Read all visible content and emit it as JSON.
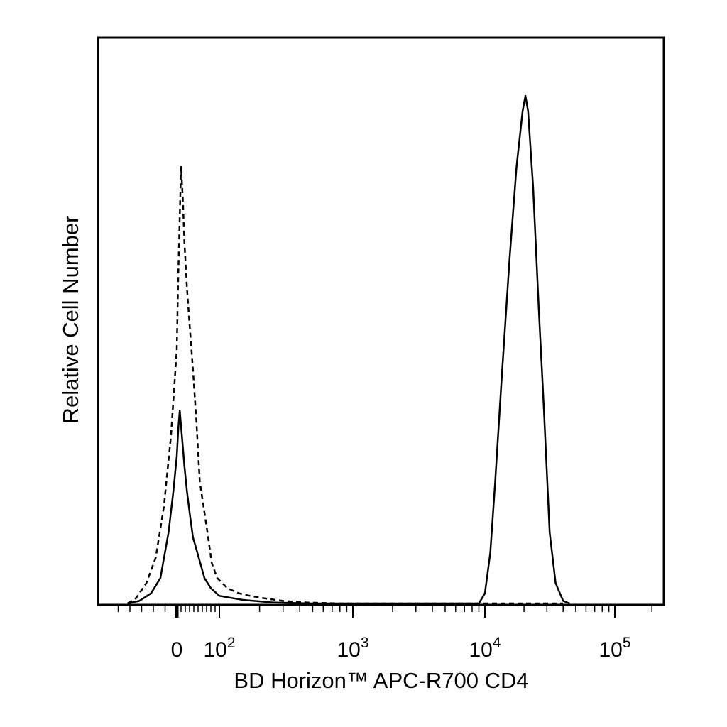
{
  "chart_data": {
    "type": "line",
    "title": "",
    "xlabel": "BD Horizon™ APC-R700 CD4",
    "ylabel": "Relative Cell Number",
    "x_scale": "biexponential",
    "xlim": [
      -60,
      250000
    ],
    "ylim": [
      0,
      1
    ],
    "grid": false,
    "legend": "none",
    "x_tick_labels": [
      {
        "value": 0,
        "label": "0",
        "sup": ""
      },
      {
        "value": 100,
        "label": "10",
        "sup": "2"
      },
      {
        "value": 1000,
        "label": "10",
        "sup": "3"
      },
      {
        "value": 10000,
        "label": "10",
        "sup": "4"
      },
      {
        "value": 100000,
        "label": "10",
        "sup": "5"
      }
    ],
    "series": [
      {
        "style": "dashed",
        "points": [
          [
            -42,
            0
          ],
          [
            -35,
            0.01
          ],
          [
            -26,
            0.04
          ],
          [
            -18,
            0.09
          ],
          [
            -11,
            0.19
          ],
          [
            -5,
            0.33
          ],
          [
            0,
            0.5
          ],
          [
            3,
            0.63
          ],
          [
            6,
            0.73
          ],
          [
            10,
            0.86
          ],
          [
            14,
            0.8
          ],
          [
            18,
            0.71
          ],
          [
            24,
            0.62
          ],
          [
            30,
            0.55
          ],
          [
            38,
            0.46
          ],
          [
            46,
            0.36
          ],
          [
            54,
            0.24
          ],
          [
            63,
            0.19
          ],
          [
            72,
            0.14
          ],
          [
            82,
            0.08
          ],
          [
            95,
            0.05
          ],
          [
            115,
            0.03
          ],
          [
            140,
            0.02
          ],
          [
            170,
            0.015
          ],
          [
            220,
            0.01
          ],
          [
            300,
            0.005
          ],
          [
            450,
            0.002
          ],
          [
            800,
            0
          ],
          [
            10000,
            0
          ],
          [
            40000,
            0
          ]
        ]
      },
      {
        "style": "solid",
        "points": [
          [
            -42,
            0
          ],
          [
            -32,
            0.005
          ],
          [
            -22,
            0.02
          ],
          [
            -14,
            0.05
          ],
          [
            -7,
            0.14
          ],
          [
            -3,
            0.22
          ],
          [
            0,
            0.29
          ],
          [
            4,
            0.35
          ],
          [
            7,
            0.38
          ],
          [
            10,
            0.35
          ],
          [
            14,
            0.31
          ],
          [
            18,
            0.27
          ],
          [
            24,
            0.22
          ],
          [
            30,
            0.18
          ],
          [
            38,
            0.13
          ],
          [
            45,
            0.11
          ],
          [
            55,
            0.08
          ],
          [
            65,
            0.05
          ],
          [
            80,
            0.03
          ],
          [
            100,
            0.015
          ],
          [
            150,
            0.007
          ],
          [
            250,
            0.002
          ],
          [
            500,
            0
          ],
          [
            9000,
            0
          ],
          [
            10000,
            0.02
          ],
          [
            11000,
            0.1
          ],
          [
            12000,
            0.24
          ],
          [
            13500,
            0.45
          ],
          [
            15500,
            0.68
          ],
          [
            17500,
            0.86
          ],
          [
            19500,
            0.97
          ],
          [
            20500,
            1
          ],
          [
            21500,
            0.97
          ],
          [
            23500,
            0.82
          ],
          [
            26000,
            0.58
          ],
          [
            28500,
            0.38
          ],
          [
            31500,
            0.14
          ],
          [
            35000,
            0.04
          ],
          [
            40000,
            0.005
          ],
          [
            45000,
            0
          ]
        ]
      }
    ]
  }
}
